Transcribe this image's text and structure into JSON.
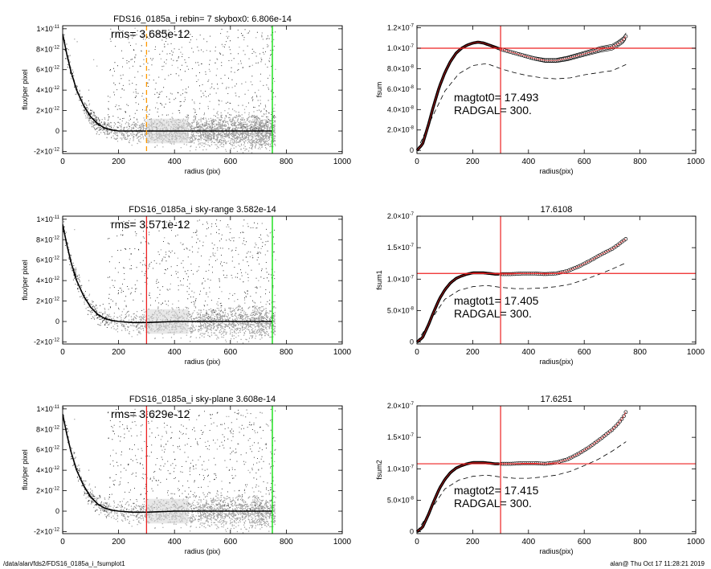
{
  "footer": {
    "path": "/data/alan/fds2/FDS16_0185a_i_fsumplot1",
    "stamp": "alan@  Thu Oct 17 11:28:21 2019"
  },
  "chart_data": [
    {
      "type": "scatter",
      "title": "FDS16_0185a_i rebin= 7    skybox0:  6.806e-14",
      "annotation": "rms= 3.685e-12",
      "xlabel": "radius (pix)",
      "ylabel": "flux/per pixel",
      "xlim": [
        0,
        1000
      ],
      "ylim": [
        -2.2e-12,
        1.03e-11
      ],
      "xticks": [
        0,
        200,
        400,
        600,
        800,
        1000
      ],
      "yticks": [
        {
          "v": 1e-11,
          "m": "1×10",
          "e": "-11"
        },
        {
          "v": 8e-12,
          "m": "8×10",
          "e": "-12"
        },
        {
          "v": 6e-12,
          "m": "6×10",
          "e": "-12"
        },
        {
          "v": 4e-12,
          "m": "4×10",
          "e": "-12"
        },
        {
          "v": 2e-12,
          "m": "2×10",
          "e": "-12"
        },
        {
          "v": 0,
          "m": "0",
          "e": ""
        },
        {
          "v": -2e-12,
          "m": "-2×10",
          "e": "-12"
        }
      ],
      "vlines": [
        {
          "x": 300,
          "color": "#ff9900",
          "dash": true
        },
        {
          "x": 750,
          "color": "#00dd00",
          "dash": false
        }
      ],
      "profile": {
        "x": [
          0,
          15,
          30,
          50,
          75,
          100,
          125,
          150,
          175,
          200,
          250,
          300,
          400,
          500,
          600,
          750
        ],
        "y": [
          9.5e-12,
          7.5e-12,
          5.8e-12,
          4e-12,
          2.5e-12,
          1.4e-12,
          7e-13,
          3e-13,
          1e-13,
          0,
          0,
          0,
          0,
          0,
          0,
          0
        ]
      }
    },
    {
      "type": "line",
      "title": "",
      "annotation": "magtot0=  17.493\nRADGAL=    300.",
      "xlabel": "radius(pix)",
      "ylabel": "fsum",
      "xlim": [
        0,
        1000
      ],
      "ylim": [
        -3e-09,
        1.22e-07
      ],
      "xticks": [
        0,
        200,
        400,
        600,
        800,
        1000
      ],
      "yticks": [
        {
          "v": 0,
          "m": "0",
          "e": ""
        },
        {
          "v": 2e-08,
          "m": "2.0×10",
          "e": "-8"
        },
        {
          "v": 4e-08,
          "m": "4.0×10",
          "e": "-8"
        },
        {
          "v": 6e-08,
          "m": "6.0×10",
          "e": "-8"
        },
        {
          "v": 8e-08,
          "m": "8.0×10",
          "e": "-8"
        },
        {
          "v": 1e-07,
          "m": "1.0×10",
          "e": "-7"
        },
        {
          "v": 1.2e-07,
          "m": "1.2×10",
          "e": "-7"
        }
      ],
      "hline": 1e-07,
      "vline": 300,
      "curve": {
        "x": [
          0,
          20,
          40,
          60,
          80,
          100,
          120,
          140,
          160,
          180,
          200,
          220,
          240,
          260,
          280,
          300,
          340,
          380,
          420,
          460,
          500,
          540,
          580,
          620,
          660,
          700,
          720,
          740,
          750
        ],
        "y": [
          0,
          6e-09,
          2.4e-08,
          4.4e-08,
          6.2e-08,
          7.6e-08,
          8.7e-08,
          9.5e-08,
          1e-07,
          1.03e-07,
          1.05e-07,
          1.06e-07,
          1.05e-07,
          1.03e-07,
          1.01e-07,
          9.9e-08,
          9.6e-08,
          9.3e-08,
          9e-08,
          8.8e-08,
          8.8e-08,
          9e-08,
          9.3e-08,
          9.6e-08,
          9.9e-08,
          1.01e-07,
          1.04e-07,
          1.08e-07,
          1.12e-07
        ]
      },
      "envelope_offset": 3e-09,
      "dashed": {
        "x": [
          0,
          50,
          100,
          150,
          200,
          250,
          300,
          350,
          400,
          450,
          500,
          550,
          600,
          650,
          700,
          750
        ],
        "y": [
          0,
          3e-08,
          5.8e-08,
          7.5e-08,
          8.3e-08,
          8.5e-08,
          8e-08,
          7.6e-08,
          7.3e-08,
          7.1e-08,
          7e-08,
          7.1e-08,
          7.4e-08,
          7.6e-08,
          7.8e-08,
          8.4e-08
        ]
      }
    },
    {
      "type": "scatter",
      "title": "FDS16_0185a_i sky-range  3.582e-14",
      "annotation": "rms= 3.571e-12",
      "xlabel": "radius (pix)",
      "ylabel": "flux/per pixel",
      "xlim": [
        0,
        1000
      ],
      "ylim": [
        -2.2e-12,
        1.03e-11
      ],
      "xticks": [
        0,
        200,
        400,
        600,
        800,
        1000
      ],
      "yticks": [
        {
          "v": 1e-11,
          "m": "1×10",
          "e": "-11"
        },
        {
          "v": 8e-12,
          "m": "8×10",
          "e": "-12"
        },
        {
          "v": 6e-12,
          "m": "6×10",
          "e": "-12"
        },
        {
          "v": 4e-12,
          "m": "4×10",
          "e": "-12"
        },
        {
          "v": 2e-12,
          "m": "2×10",
          "e": "-12"
        },
        {
          "v": 0,
          "m": "0",
          "e": ""
        },
        {
          "v": -2e-12,
          "m": "-2×10",
          "e": "-12"
        }
      ],
      "vlines": [
        {
          "x": 300,
          "color": "#ee2222",
          "dash": false
        },
        {
          "x": 750,
          "color": "#00dd00",
          "dash": false
        }
      ],
      "profile": {
        "x": [
          0,
          15,
          30,
          50,
          75,
          100,
          125,
          150,
          175,
          200,
          250,
          300,
          400,
          500,
          600,
          750
        ],
        "y": [
          9.5e-12,
          7.5e-12,
          5.8e-12,
          4e-12,
          2.5e-12,
          1.4e-12,
          7e-13,
          3e-13,
          1e-13,
          0,
          -1e-13,
          -1e-13,
          0,
          0,
          0,
          0
        ]
      }
    },
    {
      "type": "line",
      "title": "17.6108",
      "annotation": "magtot1=  17.405\nRADGAL=    300.",
      "xlabel": "radius(pix)",
      "ylabel": "fsum1",
      "xlim": [
        0,
        1000
      ],
      "ylim": [
        -3e-09,
        2e-07
      ],
      "xticks": [
        0,
        200,
        400,
        600,
        800,
        1000
      ],
      "yticks": [
        {
          "v": 0,
          "m": "0",
          "e": ""
        },
        {
          "v": 5e-08,
          "m": "5.0×10",
          "e": "-8"
        },
        {
          "v": 1e-07,
          "m": "1.0×10",
          "e": "-7"
        },
        {
          "v": 1.5e-07,
          "m": "1.5×10",
          "e": "-7"
        },
        {
          "v": 2e-07,
          "m": "2.0×10",
          "e": "-7"
        }
      ],
      "hline": 1.09e-07,
      "vline": 300,
      "curve": {
        "x": [
          0,
          20,
          40,
          60,
          80,
          100,
          120,
          140,
          160,
          180,
          200,
          220,
          240,
          260,
          280,
          300,
          340,
          380,
          420,
          460,
          500,
          540,
          580,
          620,
          660,
          700,
          720,
          740,
          750
        ],
        "y": [
          0,
          7e-09,
          2.6e-08,
          4.8e-08,
          6.8e-08,
          8.3e-08,
          9.4e-08,
          1.01e-07,
          1.05e-07,
          1.08e-07,
          1.1e-07,
          1.1e-07,
          1.1e-07,
          1.09e-07,
          1.08e-07,
          1.08e-07,
          1.08e-07,
          1.09e-07,
          1.09e-07,
          1.08e-07,
          1.09e-07,
          1.13e-07,
          1.2e-07,
          1.29e-07,
          1.39e-07,
          1.48e-07,
          1.54e-07,
          1.61e-07,
          1.64e-07
        ]
      },
      "dashed": {
        "x": [
          0,
          50,
          100,
          150,
          200,
          250,
          300,
          350,
          400,
          450,
          500,
          550,
          600,
          650,
          700,
          750
        ],
        "y": [
          0,
          3.5e-08,
          6.8e-08,
          8.2e-08,
          8.8e-08,
          9e-08,
          8.7e-08,
          8.5e-08,
          8.5e-08,
          8.6e-08,
          8.8e-08,
          9.2e-08,
          9.9e-08,
          1.07e-07,
          1.16e-07,
          1.26e-07
        ]
      }
    },
    {
      "type": "scatter",
      "title": "FDS16_0185a_i sky-plane  3.608e-14",
      "annotation": "rms= 3.629e-12",
      "xlabel": "radius (pix)",
      "ylabel": "flux/per pixel",
      "xlim": [
        0,
        1000
      ],
      "ylim": [
        -2.2e-12,
        1.03e-11
      ],
      "xticks": [
        0,
        200,
        400,
        600,
        800,
        1000
      ],
      "yticks": [
        {
          "v": 1e-11,
          "m": "1×10",
          "e": "-11"
        },
        {
          "v": 8e-12,
          "m": "8×10",
          "e": "-12"
        },
        {
          "v": 6e-12,
          "m": "6×10",
          "e": "-12"
        },
        {
          "v": 4e-12,
          "m": "4×10",
          "e": "-12"
        },
        {
          "v": 2e-12,
          "m": "2×10",
          "e": "-12"
        },
        {
          "v": 0,
          "m": "0",
          "e": ""
        },
        {
          "v": -2e-12,
          "m": "-2×10",
          "e": "-12"
        }
      ],
      "vlines": [
        {
          "x": 300,
          "color": "#ee2222",
          "dash": false
        },
        {
          "x": 750,
          "color": "#00dd00",
          "dash": false
        }
      ],
      "profile": {
        "x": [
          0,
          15,
          30,
          50,
          75,
          100,
          125,
          150,
          175,
          200,
          250,
          300,
          400,
          500,
          600,
          750
        ],
        "y": [
          9.5e-12,
          7.5e-12,
          5.8e-12,
          4e-12,
          2.5e-12,
          1.4e-12,
          7e-13,
          3e-13,
          1e-13,
          0,
          -1e-13,
          -1e-13,
          0,
          0,
          0,
          0
        ]
      }
    },
    {
      "type": "line",
      "title": "17.6251",
      "annotation": "magtot2=  17.415\nRADGAL=    300.",
      "xlabel": "radius(pix)",
      "ylabel": "fsum2",
      "xlim": [
        0,
        1000
      ],
      "ylim": [
        -3e-09,
        2e-07
      ],
      "xticks": [
        0,
        200,
        400,
        600,
        800,
        1000
      ],
      "yticks": [
        {
          "v": 0,
          "m": "0",
          "e": ""
        },
        {
          "v": 5e-08,
          "m": "5.0×10",
          "e": "-8"
        },
        {
          "v": 1e-07,
          "m": "1.0×10",
          "e": "-7"
        },
        {
          "v": 1.5e-07,
          "m": "1.5×10",
          "e": "-7"
        },
        {
          "v": 2e-07,
          "m": "2.0×10",
          "e": "-7"
        }
      ],
      "hline": 1.08e-07,
      "vline": 300,
      "curve": {
        "x": [
          0,
          20,
          40,
          60,
          80,
          100,
          120,
          140,
          160,
          180,
          200,
          220,
          240,
          260,
          280,
          300,
          340,
          380,
          420,
          460,
          500,
          540,
          580,
          620,
          660,
          700,
          720,
          740,
          750
        ],
        "y": [
          0,
          7e-09,
          2.6e-08,
          4.8e-08,
          6.8e-08,
          8.3e-08,
          9.4e-08,
          1.01e-07,
          1.05e-07,
          1.08e-07,
          1.1e-07,
          1.1e-07,
          1.1e-07,
          1.09e-07,
          1.08e-07,
          1.08e-07,
          1.08e-07,
          1.09e-07,
          1.09e-07,
          1.08e-07,
          1.1e-07,
          1.15e-07,
          1.24e-07,
          1.35e-07,
          1.48e-07,
          1.62e-07,
          1.71e-07,
          1.82e-07,
          1.91e-07
        ]
      },
      "dashed": {
        "x": [
          0,
          50,
          100,
          150,
          200,
          250,
          300,
          350,
          400,
          450,
          500,
          550,
          600,
          650,
          700,
          750
        ],
        "y": [
          0,
          3.5e-08,
          6.8e-08,
          8.2e-08,
          8.8e-08,
          9e-08,
          8.7e-08,
          8.5e-08,
          8.5e-08,
          8.7e-08,
          9e-08,
          9.6e-08,
          1.05e-07,
          1.15e-07,
          1.28e-07,
          1.43e-07
        ]
      }
    }
  ]
}
